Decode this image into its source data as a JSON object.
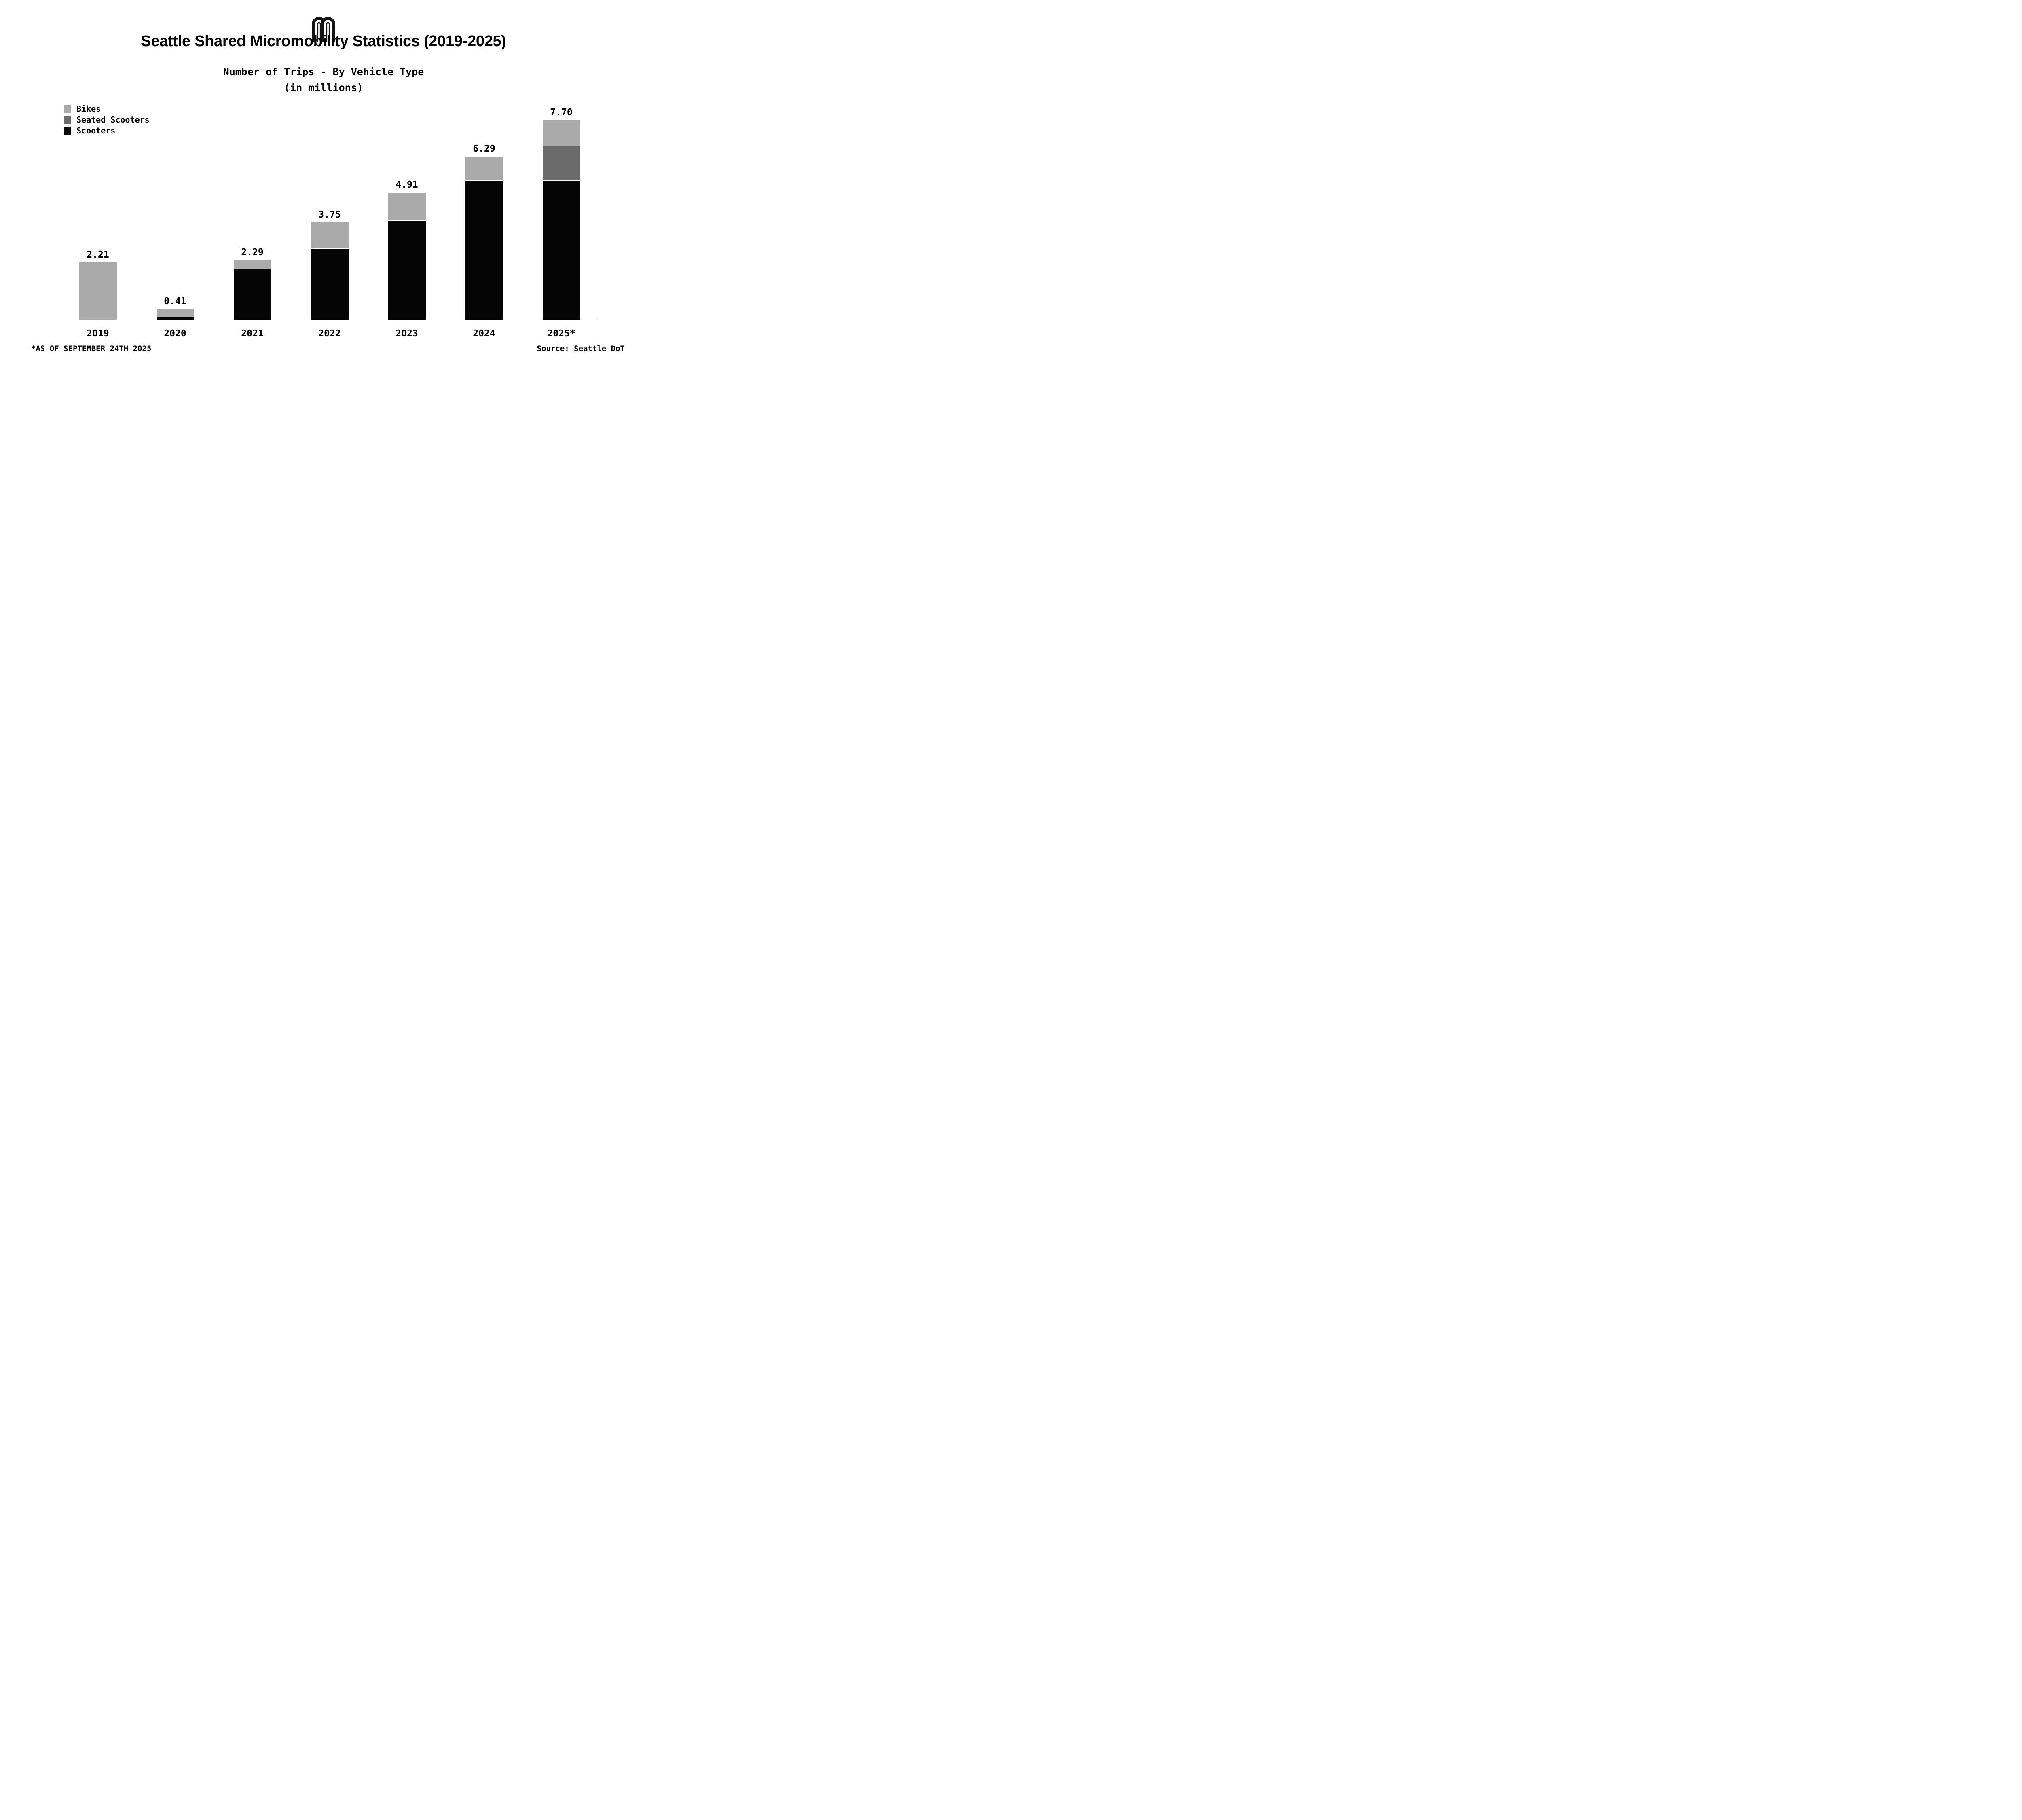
{
  "header": {
    "logo_icon": "double-arch-m-logo",
    "title": "Seattle Shared Micromobility Statistics (2019-2025)",
    "subtitle_line1": "Number of Trips - By Vehicle Type",
    "subtitle_line2": "(in millions)"
  },
  "colors": {
    "bikes": "#aaaaaa",
    "seated_scooters": "#6b6b6b",
    "scooters": "#050505",
    "axis_line": "#3d3d3d",
    "background": "#ffffff",
    "text": "#000000"
  },
  "legend": {
    "position": "top-left",
    "items": [
      {
        "label": "Bikes",
        "color": "#aaaaaa"
      },
      {
        "label": "Seated Scooters",
        "color": "#6b6b6b"
      },
      {
        "label": "Scooters",
        "color": "#050505"
      }
    ]
  },
  "chart_data": {
    "type": "bar",
    "stacked": true,
    "title": "Number of Trips - By Vehicle Type (in millions)",
    "xlabel": "",
    "ylabel": "",
    "grid": false,
    "ylim": [
      0,
      8.2
    ],
    "categories": [
      "2019",
      "2020",
      "2021",
      "2022",
      "2023",
      "2024",
      "2025*"
    ],
    "series": [
      {
        "name": "Scooters",
        "color": "#050505",
        "values": [
          0,
          0.08,
          1.96,
          2.73,
          3.81,
          5.36,
          5.36
        ]
      },
      {
        "name": "Seated Scooters",
        "color": "#6b6b6b",
        "values": [
          0,
          0,
          0,
          0,
          0.03,
          0,
          1.32
        ]
      },
      {
        "name": "Bikes",
        "color": "#aaaaaa",
        "values": [
          2.21,
          0.33,
          0.33,
          1.02,
          1.07,
          0.93,
          1.02
        ]
      }
    ],
    "totals": [
      2.21,
      0.41,
      2.29,
      3.75,
      4.91,
      6.29,
      7.7
    ],
    "totals_labels": [
      "2.21",
      "0.41",
      "2.29",
      "3.75",
      "4.91",
      "6.29",
      "7.70"
    ]
  },
  "footer": {
    "footnote": "*AS OF SEPTEMBER 24TH 2025",
    "source": "Source: Seattle DoT"
  }
}
